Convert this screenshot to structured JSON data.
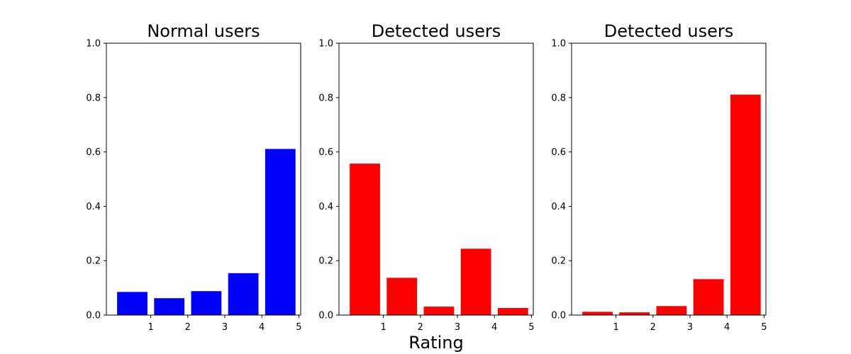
{
  "chart_data": [
    {
      "type": "bar",
      "title": "Normal users",
      "color": "#0000ff",
      "bars": [
        {
          "x": 0.5,
          "value": 0.085
        },
        {
          "x": 1.5,
          "value": 0.062
        },
        {
          "x": 2.5,
          "value": 0.088
        },
        {
          "x": 3.5,
          "value": 0.154
        },
        {
          "x": 4.5,
          "value": 0.611
        }
      ],
      "xticks": [
        1,
        2,
        3,
        4,
        5
      ],
      "xlim": [
        -0.2,
        5.05
      ],
      "ylim": [
        0,
        1.0
      ],
      "yticks": [
        "0.0",
        "0.2",
        "0.4",
        "0.6",
        "0.8",
        "1.0"
      ]
    },
    {
      "type": "bar",
      "title": "Detected users",
      "color": "#ff0000",
      "bars": [
        {
          "x": 0.5,
          "value": 0.557
        },
        {
          "x": 1.5,
          "value": 0.137
        },
        {
          "x": 2.5,
          "value": 0.031
        },
        {
          "x": 3.5,
          "value": 0.244
        },
        {
          "x": 4.5,
          "value": 0.026
        }
      ],
      "xticks": [
        1,
        2,
        3,
        4,
        5
      ],
      "xlim": [
        -0.2,
        5.05
      ],
      "ylim": [
        0,
        1.0
      ],
      "yticks": [
        "0.0",
        "0.2",
        "0.4",
        "0.6",
        "0.8",
        "1.0"
      ]
    },
    {
      "type": "bar",
      "title": "Detected users",
      "color": "#ff0000",
      "bars": [
        {
          "x": 0.5,
          "value": 0.012
        },
        {
          "x": 1.5,
          "value": 0.01
        },
        {
          "x": 2.5,
          "value": 0.033
        },
        {
          "x": 3.5,
          "value": 0.132
        },
        {
          "x": 4.5,
          "value": 0.811
        }
      ],
      "xticks": [
        1,
        2,
        3,
        4,
        5
      ],
      "xlim": [
        -0.2,
        5.05
      ],
      "ylim": [
        0,
        1.0
      ],
      "yticks": [
        "0.0",
        "0.2",
        "0.4",
        "0.6",
        "0.8",
        "1.0"
      ]
    }
  ],
  "xlabel": "Rating"
}
